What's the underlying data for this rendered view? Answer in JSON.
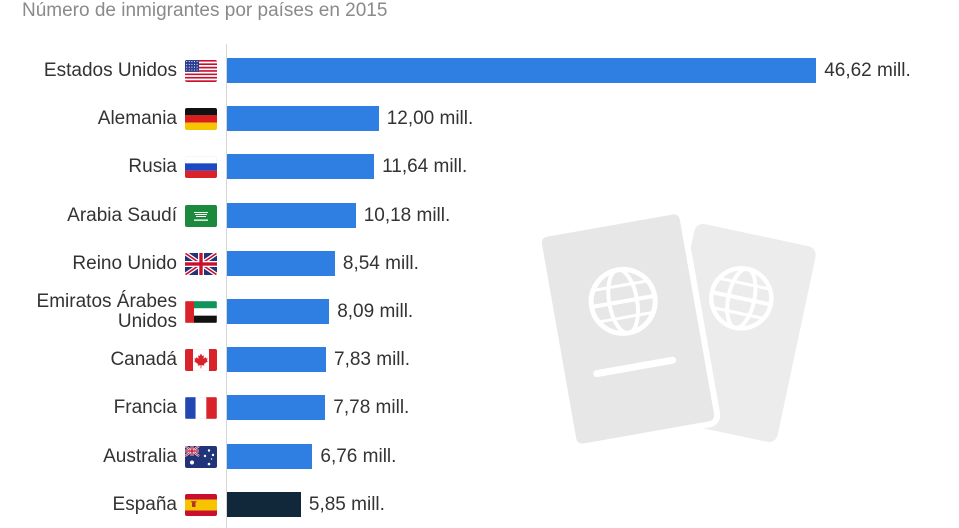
{
  "chart_data": {
    "type": "bar",
    "orientation": "horizontal",
    "subtitle": "Número de inmigrantes por países en 2015",
    "categories": [
      "Estados Unidos",
      "Alemania",
      "Rusia",
      "Arabia Saudí",
      "Reino Unido",
      "Emiratos Árabes Unidos",
      "Canadá",
      "Francia",
      "Australia",
      "España"
    ],
    "values": [
      46.62,
      12.0,
      11.64,
      10.18,
      8.54,
      8.09,
      7.83,
      7.78,
      6.76,
      5.85
    ],
    "value_labels": [
      "46,62 mill.",
      "12,00 mill.",
      "11,64 mill.",
      "10,18 mill.",
      "8,54 mill.",
      "8,09 mill.",
      "7,83 mill.",
      "7,78 mill.",
      "6,76 mill.",
      "5,85 mill."
    ],
    "flag_icons": [
      "usa-flag-icon",
      "germany-flag-icon",
      "russia-flag-icon",
      "saudi-arabia-flag-icon",
      "uk-flag-icon",
      "uae-flag-icon",
      "canada-flag-icon",
      "france-flag-icon",
      "australia-flag-icon",
      "spain-flag-icon"
    ],
    "bar_color": "#2f7ee2",
    "highlight_color": "#11283a",
    "highlight_index": 9,
    "xlim": [
      0,
      47
    ],
    "grid": false
  }
}
